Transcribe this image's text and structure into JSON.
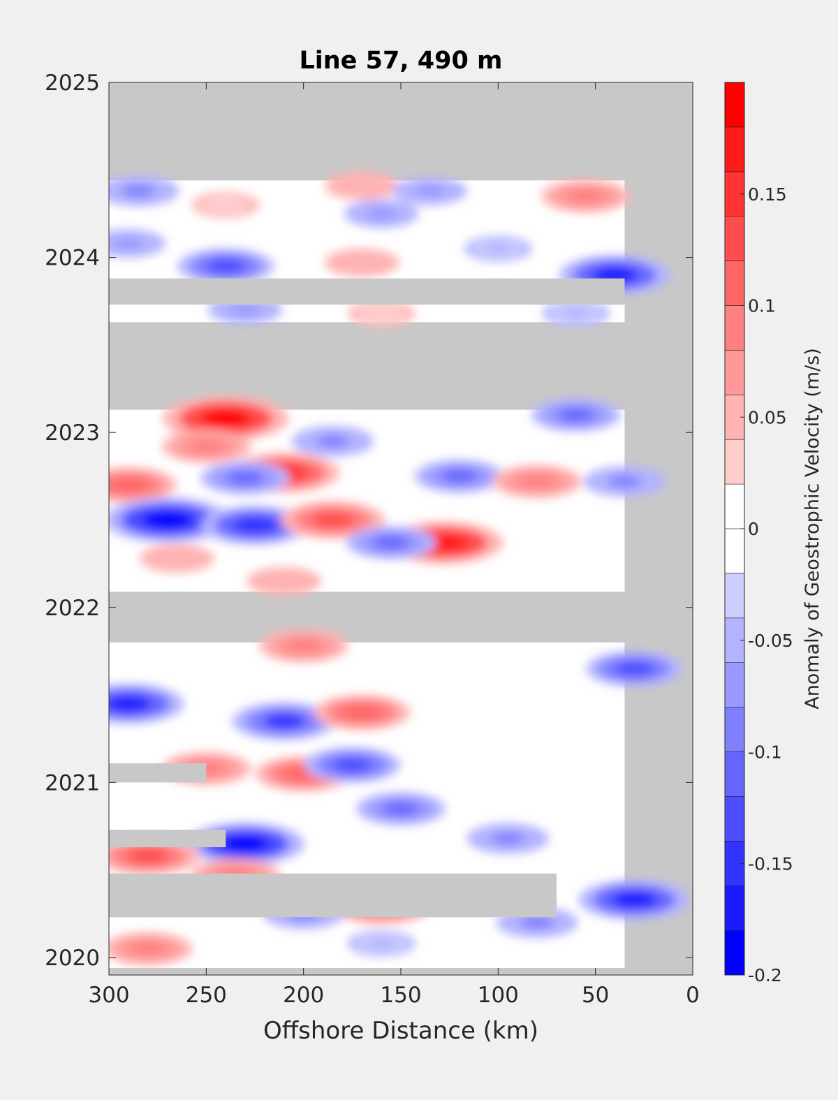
{
  "chart_data": {
    "type": "heatmap",
    "title": "Line 57, 490 m",
    "xlabel": "Offshore Distance (km)",
    "ylabel": "",
    "x_reversed": true,
    "xlim": [
      0,
      300
    ],
    "ylim": [
      2019.9,
      2025
    ],
    "x_ticks": [
      {
        "value": 300,
        "label": "300"
      },
      {
        "value": 250,
        "label": "250"
      },
      {
        "value": 200,
        "label": "200"
      },
      {
        "value": 150,
        "label": "150"
      },
      {
        "value": 100,
        "label": "100"
      },
      {
        "value": 50,
        "label": "50"
      },
      {
        "value": 0,
        "label": "0"
      }
    ],
    "y_ticks": [
      {
        "value": 2020,
        "label": "2020"
      },
      {
        "value": 2021,
        "label": "2021"
      },
      {
        "value": 2022,
        "label": "2022"
      },
      {
        "value": 2023,
        "label": "2023"
      },
      {
        "value": 2024,
        "label": "2024"
      },
      {
        "value": 2025,
        "label": "2025"
      }
    ],
    "missing_data_color": "#c8c8c8",
    "colorbar": {
      "label": "Anomaly of Geostrophic Velocity (m/s)",
      "range": [
        -0.2,
        0.2
      ],
      "levels": [
        -0.2,
        -0.18,
        -0.16,
        -0.14,
        -0.12,
        -0.1,
        -0.08,
        -0.06,
        -0.04,
        -0.02,
        0,
        0.02,
        0.04,
        0.06,
        0.08,
        0.1,
        0.12,
        0.14,
        0.16,
        0.18,
        0.2
      ],
      "colors": [
        "#0000ff",
        "#1a1aff",
        "#3333ff",
        "#4d4dff",
        "#6666ff",
        "#8080ff",
        "#9999ff",
        "#b3b3ff",
        "#ccccff",
        "#ffffff",
        "#ffffff",
        "#ffcccc",
        "#ffb3b3",
        "#ff9999",
        "#ff8080",
        "#ff6666",
        "#ff4d4d",
        "#ff3333",
        "#ff1a1a",
        "#ff0000"
      ],
      "ticks": [
        {
          "value": -0.2,
          "label": "-0.2"
        },
        {
          "value": -0.15,
          "label": "-0.15"
        },
        {
          "value": -0.1,
          "label": "-0.1"
        },
        {
          "value": -0.05,
          "label": "-0.05"
        },
        {
          "value": 0,
          "label": "0"
        },
        {
          "value": 0.05,
          "label": "0.05"
        },
        {
          "value": 0.1,
          "label": "0.1"
        },
        {
          "value": 0.15,
          "label": "0.15"
        }
      ]
    },
    "valid_data_periods": [
      {
        "start": 2019.94,
        "end": 2021.8,
        "x_min": 35,
        "x_max": 300
      },
      {
        "start": 2022.09,
        "end": 2023.13,
        "x_min": 35,
        "x_max": 300
      },
      {
        "start": 2023.63,
        "end": 2024.44,
        "x_min": 35,
        "x_max": 300
      }
    ],
    "missing_data_gaps": [
      {
        "start": 2020.23,
        "end": 2020.48,
        "x_min": 70,
        "x_max": 300
      },
      {
        "start": 2020.63,
        "end": 2020.73,
        "x_min": 240,
        "x_max": 300
      },
      {
        "start": 2021.0,
        "end": 2021.11,
        "x_min": 250,
        "x_max": 300
      },
      {
        "start": 2023.73,
        "end": 2023.88,
        "x_min": 35,
        "x_max": 300
      }
    ],
    "anomaly_features": [
      {
        "x": 285,
        "y": 2024.38,
        "value": -0.08
      },
      {
        "x": 240,
        "y": 2024.3,
        "value": 0.04
      },
      {
        "x": 170,
        "y": 2024.41,
        "value": 0.06
      },
      {
        "x": 135,
        "y": 2024.38,
        "value": -0.06
      },
      {
        "x": 55,
        "y": 2024.35,
        "value": 0.1
      },
      {
        "x": 160,
        "y": 2024.25,
        "value": -0.06
      },
      {
        "x": 290,
        "y": 2024.08,
        "value": -0.06
      },
      {
        "x": 240,
        "y": 2023.95,
        "value": -0.12
      },
      {
        "x": 170,
        "y": 2023.97,
        "value": 0.06
      },
      {
        "x": 40,
        "y": 2023.9,
        "value": -0.16
      },
      {
        "x": 100,
        "y": 2024.05,
        "value": -0.04
      },
      {
        "x": 230,
        "y": 2023.7,
        "value": -0.06
      },
      {
        "x": 160,
        "y": 2023.68,
        "value": 0.04
      },
      {
        "x": 60,
        "y": 2023.68,
        "value": -0.04
      },
      {
        "x": 240,
        "y": 2023.08,
        "value": 0.2
      },
      {
        "x": 60,
        "y": 2023.1,
        "value": -0.1
      },
      {
        "x": 250,
        "y": 2022.92,
        "value": 0.1
      },
      {
        "x": 185,
        "y": 2022.95,
        "value": -0.08
      },
      {
        "x": 210,
        "y": 2022.77,
        "value": 0.16
      },
      {
        "x": 290,
        "y": 2022.7,
        "value": 0.12
      },
      {
        "x": 230,
        "y": 2022.74,
        "value": -0.1
      },
      {
        "x": 270,
        "y": 2022.5,
        "value": -0.2
      },
      {
        "x": 225,
        "y": 2022.47,
        "value": -0.15
      },
      {
        "x": 185,
        "y": 2022.5,
        "value": 0.14
      },
      {
        "x": 120,
        "y": 2022.75,
        "value": -0.1
      },
      {
        "x": 80,
        "y": 2022.72,
        "value": 0.1
      },
      {
        "x": 35,
        "y": 2022.72,
        "value": -0.08
      },
      {
        "x": 128,
        "y": 2022.37,
        "value": 0.18
      },
      {
        "x": 155,
        "y": 2022.37,
        "value": -0.1
      },
      {
        "x": 265,
        "y": 2022.28,
        "value": 0.06
      },
      {
        "x": 210,
        "y": 2022.15,
        "value": 0.06
      },
      {
        "x": 200,
        "y": 2021.78,
        "value": 0.1
      },
      {
        "x": 30,
        "y": 2021.65,
        "value": -0.12
      },
      {
        "x": 290,
        "y": 2021.45,
        "value": -0.16
      },
      {
        "x": 210,
        "y": 2021.35,
        "value": -0.14
      },
      {
        "x": 170,
        "y": 2021.4,
        "value": 0.12
      },
      {
        "x": 250,
        "y": 2021.08,
        "value": 0.1
      },
      {
        "x": 200,
        "y": 2021.05,
        "value": 0.12
      },
      {
        "x": 175,
        "y": 2021.1,
        "value": -0.12
      },
      {
        "x": 150,
        "y": 2020.85,
        "value": -0.1
      },
      {
        "x": 95,
        "y": 2020.68,
        "value": -0.08
      },
      {
        "x": 230,
        "y": 2020.65,
        "value": -0.18
      },
      {
        "x": 280,
        "y": 2020.58,
        "value": 0.14
      },
      {
        "x": 235,
        "y": 2020.47,
        "value": 0.1
      },
      {
        "x": 160,
        "y": 2020.3,
        "value": 0.14
      },
      {
        "x": 200,
        "y": 2020.25,
        "value": -0.08
      },
      {
        "x": 30,
        "y": 2020.33,
        "value": -0.16
      },
      {
        "x": 280,
        "y": 2020.05,
        "value": 0.1
      },
      {
        "x": 160,
        "y": 2020.08,
        "value": -0.04
      },
      {
        "x": 80,
        "y": 2020.2,
        "value": -0.08
      }
    ]
  }
}
